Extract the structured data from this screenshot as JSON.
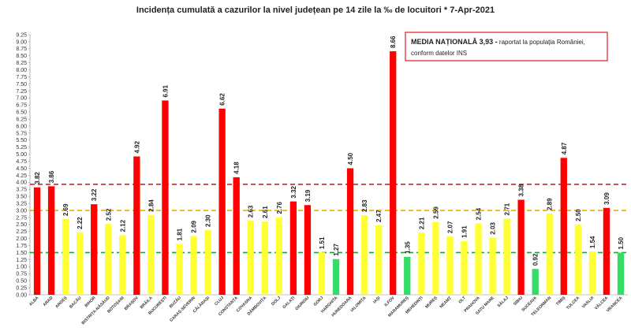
{
  "chart_data": {
    "type": "bar",
    "title": "Incidența cumulată a cazurilor la nivel județean pe 14 zile la ‰ de locuitori *  7-Apr-2021",
    "xlabel": "",
    "ylabel": "",
    "ylim": [
      0,
      9.25
    ],
    "ytick_step": 0.25,
    "grid": false,
    "legend": "none",
    "categories": [
      "ALBA",
      "ARAD",
      "ARGEȘ",
      "BACĂU",
      "BIHOR",
      "BISTRIȚA-NĂSĂUD",
      "BOTOȘANI",
      "BRAȘOV",
      "BRĂILA",
      "BUCUREȘTI",
      "BUZĂU",
      "CARAȘ-SEVERIN",
      "CĂLĂRAȘI",
      "CLUJ",
      "CONSTANȚA",
      "COVASNA",
      "DÂMBOVIȚA",
      "DOLJ",
      "GALAȚI",
      "GIURGIU",
      "GORJ",
      "HARGHITA",
      "HUNEDOARA",
      "IALOMIȚA",
      "IAȘI",
      "ILFOV",
      "MARAMUREȘ",
      "MEHEDINȚI",
      "MUREȘ",
      "NEAMȚ",
      "OLT",
      "PRAHOVA",
      "SATU MARE",
      "SĂLAJ",
      "SIBIU",
      "SUCEAVA",
      "TELEORMAN",
      "TIMIȘ",
      "TULCEA",
      "VASLUI",
      "VÂLCEA",
      "VRANCEA"
    ],
    "values": [
      3.82,
      3.86,
      2.69,
      2.22,
      3.22,
      2.52,
      2.12,
      4.92,
      2.84,
      6.91,
      1.81,
      2.09,
      2.3,
      6.62,
      4.18,
      2.63,
      2.61,
      2.76,
      3.32,
      3.19,
      1.51,
      1.27,
      4.5,
      2.83,
      2.47,
      8.66,
      1.35,
      2.21,
      2.59,
      2.07,
      1.91,
      2.54,
      2.03,
      2.71,
      3.38,
      0.92,
      2.89,
      4.87,
      2.5,
      1.54,
      3.09,
      1.5
    ],
    "value_labels": [
      "3.82",
      "3.86",
      "2.69",
      "2.22",
      "3.22",
      "2.52",
      "2.12",
      "4.92",
      "2.84",
      "6.91",
      "1.81",
      "2.09",
      "2.30",
      "6.62",
      "4.18",
      "2.63",
      "2.61",
      "2.76",
      "3.32",
      "3.19",
      "1.51",
      "1.27",
      "4.50",
      "2.83",
      "2.47",
      "8.66",
      "1.35",
      "2.21",
      "2.59",
      "2.07",
      "1.91",
      "2.54",
      "2.03",
      "2.71",
      "3.38",
      "0.92",
      "2.89",
      "4.87",
      "2.50",
      "1.54",
      "3.09",
      "1.50"
    ],
    "y_tick_labels": [
      "0.00",
      "0.25",
      "0.50",
      "0.75",
      "1.00",
      "1.25",
      "1.50",
      "1.75",
      "2.00",
      "2.25",
      "2.50",
      "2.75",
      "3.00",
      "3.25",
      "3.50",
      "3.75",
      "4.00",
      "4.25",
      "4.50",
      "4.75",
      "5.00",
      "5.25",
      "5.50",
      "5.75",
      "6.00",
      "6.25",
      "6.50",
      "6.75",
      "7.00",
      "7.25",
      "7.50",
      "7.75",
      "8.00",
      "8.25",
      "8.50",
      "8.75",
      "9.00",
      "9.25"
    ],
    "reference_lines": [
      {
        "value": 3.93,
        "color": "#e02020"
      },
      {
        "value": 3.0,
        "color": "#e0b000"
      },
      {
        "value": 1.5,
        "color": "#20a040"
      }
    ],
    "colors": {
      "red": "#ff0000",
      "yellow": "#ffff33",
      "green": "#33dd66"
    },
    "annotation": {
      "bold": "MEDIA NAȚIONALĂ  3,93 -",
      "rest": " raportat la populația României,",
      "line2": "conform datelor INS"
    }
  }
}
